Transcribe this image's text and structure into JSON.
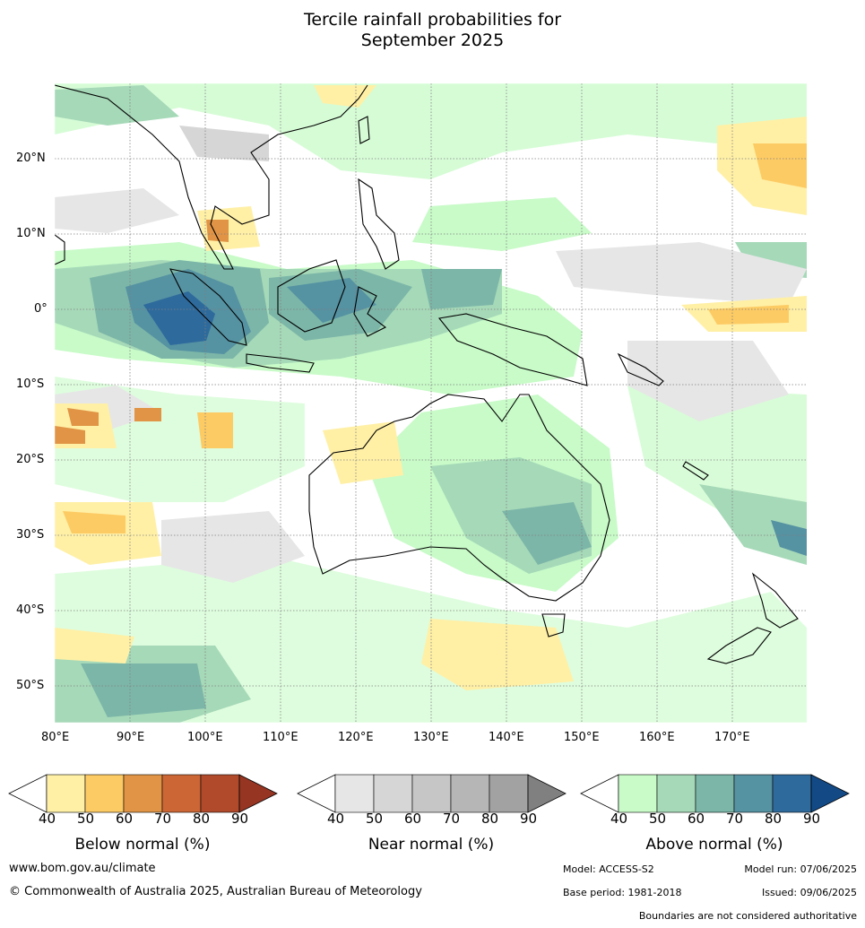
{
  "title_line1": "Tercile rainfall probabilities for",
  "title_line2": "September 2025",
  "lat_labels": [
    "20°N",
    "10°N",
    "0°",
    "10°S",
    "20°S",
    "30°S",
    "40°S",
    "50°S"
  ],
  "lon_labels": [
    "80°E",
    "90°E",
    "100°E",
    "110°E",
    "120°E",
    "130°E",
    "140°E",
    "150°E",
    "160°E",
    "170°E"
  ],
  "colorbars": [
    {
      "title": "Below normal (%)",
      "ticks": [
        "40",
        "50",
        "60",
        "70",
        "80",
        "90"
      ],
      "colors": [
        "#fff0a6",
        "#fdcb64",
        "#e19445",
        "#cc6635",
        "#b04a2b",
        "#973523"
      ]
    },
    {
      "title": "Near normal (%)",
      "ticks": [
        "40",
        "50",
        "60",
        "70",
        "80",
        "90"
      ],
      "colors": [
        "#e6e6e6",
        "#d6d6d6",
        "#c6c6c6",
        "#b6b6b6",
        "#a2a2a2",
        "#808080"
      ]
    },
    {
      "title": "Above normal (%)",
      "ticks": [
        "40",
        "50",
        "60",
        "70",
        "80",
        "90"
      ],
      "colors": [
        "#c8fbc8",
        "#a6d9b8",
        "#7cb6a8",
        "#5592a2",
        "#2e6a9c",
        "#134a86"
      ]
    }
  ],
  "footer": {
    "website": "www.bom.gov.au/climate",
    "copyright": "© Commonwealth of Australia 2025, Australian Bureau of Meteorology",
    "model": "Model: ACCESS-S2",
    "model_run": "Model run: 07/06/2025",
    "base_period": "Base period: 1981-2018",
    "issued": "Issued: 09/06/2025",
    "disclaimer": "Boundaries are not considered authoritative"
  }
}
